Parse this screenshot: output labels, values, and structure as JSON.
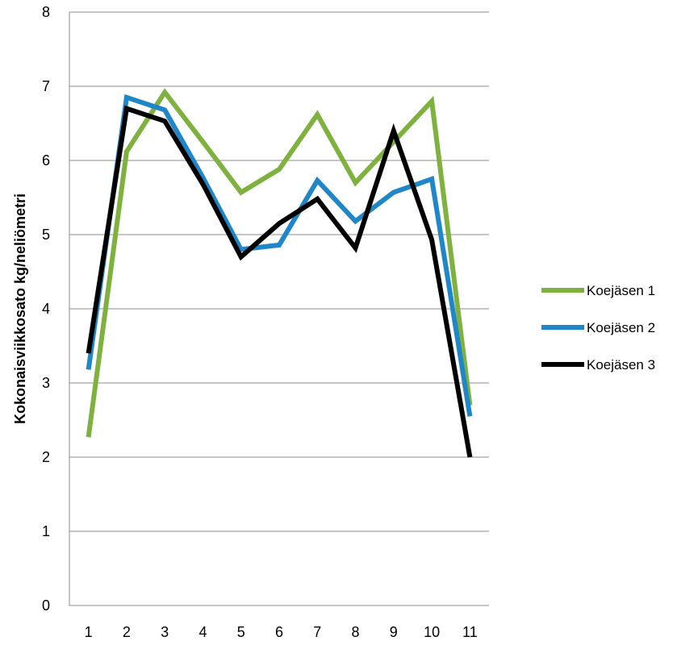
{
  "chart_data": {
    "type": "line",
    "title": "",
    "xlabel": "",
    "ylabel": "Kokonaisviikkosato kg/neliömetri",
    "categories": [
      "1",
      "2",
      "3",
      "4",
      "5",
      "6",
      "7",
      "8",
      "9",
      "10",
      "11"
    ],
    "ylim": [
      0,
      8
    ],
    "yticks": [
      "0",
      "1",
      "2",
      "3",
      "4",
      "5",
      "6",
      "7",
      "8"
    ],
    "grid": true,
    "legend_position": "right",
    "series": [
      {
        "name": "Koejäsen 1",
        "color": "#7fb13f",
        "values": [
          2.27,
          6.12,
          6.92,
          6.25,
          5.57,
          5.88,
          6.62,
          5.7,
          6.25,
          6.8,
          2.7
        ]
      },
      {
        "name": "Koejäsen 2",
        "color": "#1f87c8",
        "values": [
          3.18,
          6.85,
          6.68,
          5.77,
          4.8,
          4.86,
          5.73,
          5.18,
          5.57,
          5.75,
          2.55
        ]
      },
      {
        "name": "Koejäsen 3",
        "color": "#000000",
        "values": [
          3.4,
          6.7,
          6.53,
          5.68,
          4.7,
          5.15,
          5.48,
          4.82,
          6.4,
          4.93,
          2.0
        ]
      }
    ]
  }
}
